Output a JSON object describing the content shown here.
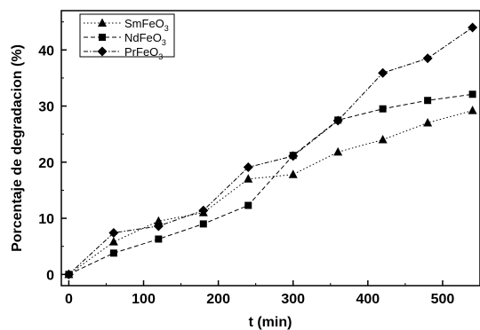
{
  "chart_data": {
    "type": "line",
    "title": "",
    "xlabel": "t (min)",
    "ylabel": "Porcentaje de degradacion (%)",
    "xlim": [
      -10,
      550
    ],
    "ylim": [
      -2,
      47
    ],
    "xticks": [
      0,
      100,
      200,
      300,
      400,
      500
    ],
    "yticks": [
      0,
      10,
      20,
      30,
      40
    ],
    "grid": false,
    "legend_position": "top-left",
    "x": [
      0,
      60,
      120,
      180,
      240,
      300,
      360,
      420,
      480,
      540
    ],
    "series": [
      {
        "name": "SmFeO3",
        "name_base": "SmFeO",
        "name_sub": "3",
        "marker": "triangle",
        "dash": "1.5,2.5",
        "color": "#000000",
        "values": [
          0,
          5.8,
          9.5,
          11.0,
          17.0,
          17.8,
          21.8,
          24.0,
          27.0,
          29.2
        ]
      },
      {
        "name": "NdFeO3",
        "name_base": "NdFeO",
        "name_sub": "3",
        "marker": "square",
        "dash": "5,3",
        "color": "#000000",
        "values": [
          0,
          3.8,
          6.3,
          9.0,
          12.3,
          21.2,
          27.5,
          29.5,
          31.0,
          32.1
        ]
      },
      {
        "name": "PrFeO3",
        "name_base": "PrFeO",
        "name_sub": "3",
        "marker": "diamond",
        "dash": "5,2,1.5,2",
        "color": "#000000",
        "values": [
          0,
          7.4,
          8.6,
          11.4,
          19.1,
          21.1,
          27.4,
          35.9,
          38.5,
          44.0
        ]
      }
    ]
  }
}
